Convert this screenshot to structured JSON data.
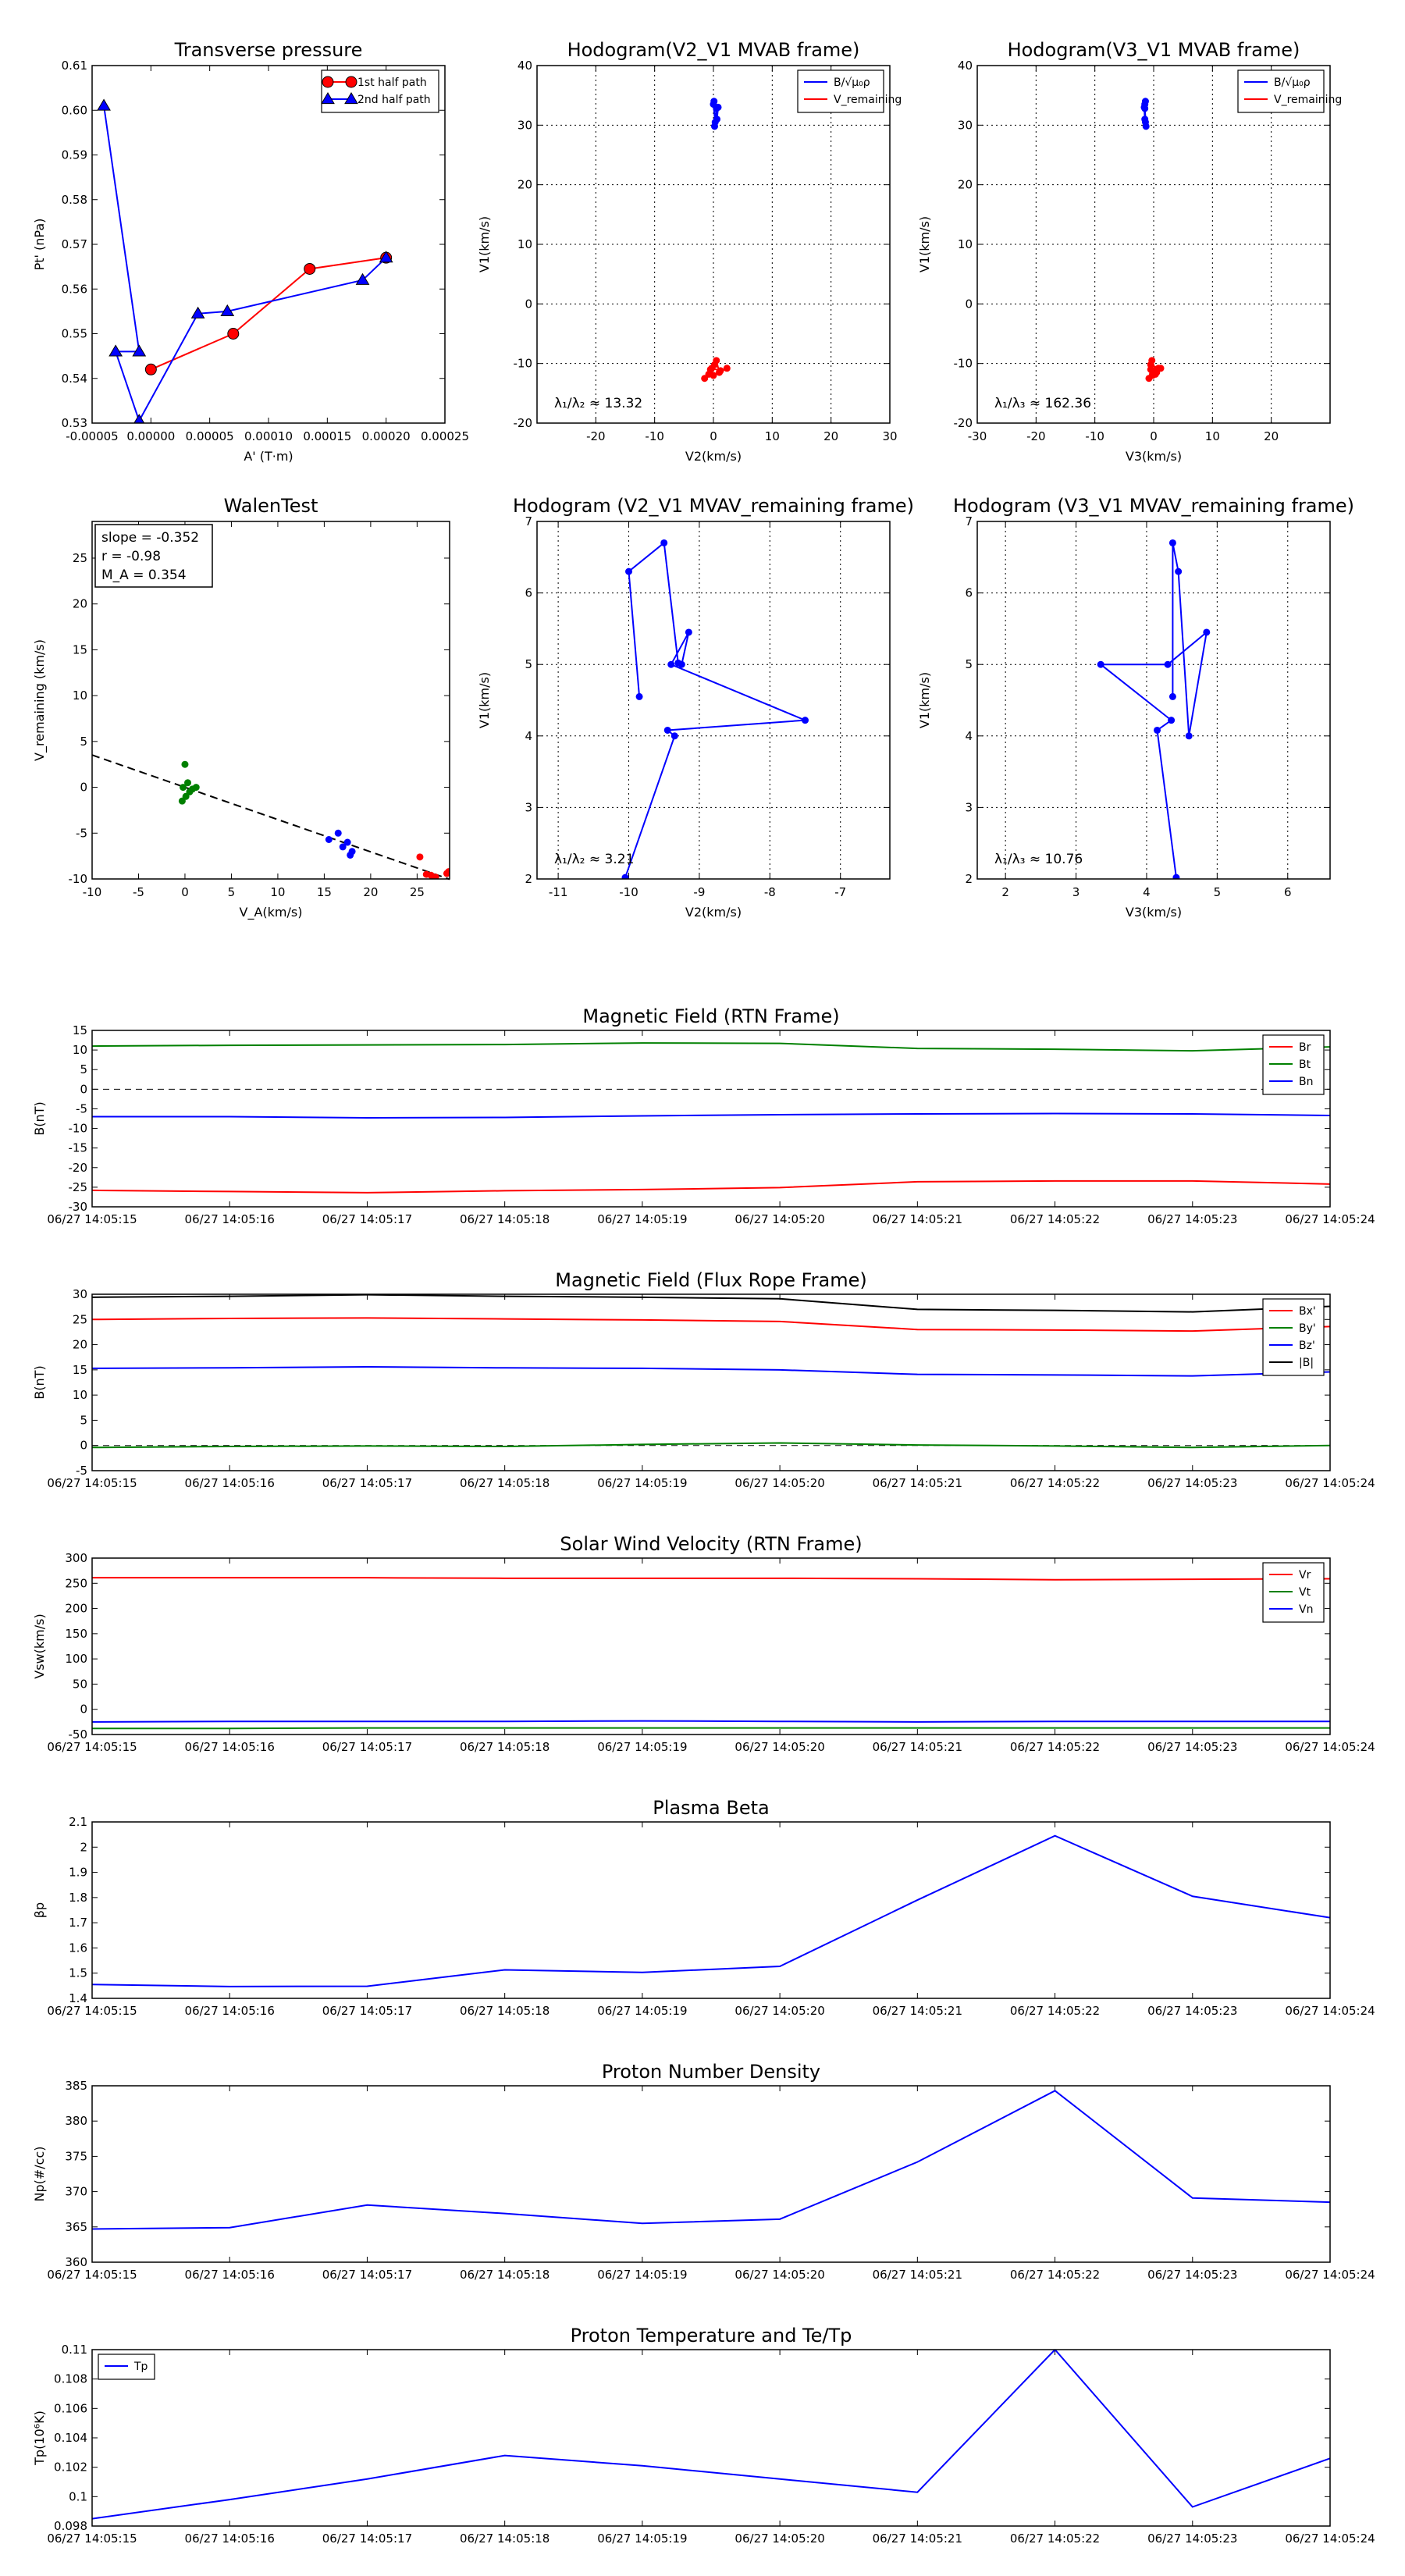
{
  "times": [
    "06/27 14:05:15",
    "06/27 14:05:16",
    "06/27 14:05:17",
    "06/27 14:05:18",
    "06/27 14:05:19",
    "06/27 14:05:20",
    "06/27 14:05:21",
    "06/27 14:05:22",
    "06/27 14:05:23",
    "06/27 14:05:24"
  ],
  "chart_data": [
    {
      "id": "transverse-pressure",
      "type": "line",
      "title": "Transverse pressure",
      "xlabel": "A' (T·m)",
      "ylabel": "Pt' (nPa)",
      "xlim": [
        -5e-05,
        0.00025
      ],
      "ylim": [
        0.53,
        0.61
      ],
      "xticks": [
        -5e-05,
        0,
        5e-05,
        0.0001,
        0.00015,
        0.0002,
        0.00025
      ],
      "xtick_labels": [
        "-0.00005",
        "0.00000",
        "0.00005",
        "0.00010",
        "0.00015",
        "0.00020",
        "0.00025"
      ],
      "yticks": [
        0.53,
        0.54,
        0.55,
        0.56,
        0.57,
        0.58,
        0.59,
        0.6,
        0.61
      ],
      "ytick_labels": [
        "0.53",
        "0.54",
        "0.55",
        "0.56",
        "0.57",
        "0.58",
        "0.59",
        "0.60",
        "0.61"
      ],
      "legend_position": "top-right",
      "series": [
        {
          "name": "1st half path",
          "color": "#ff0000",
          "marker": "circle",
          "x": [
            0.0,
            7e-05,
            0.000135,
            0.0002
          ],
          "y": [
            0.542,
            0.55,
            0.5645,
            0.567
          ]
        },
        {
          "name": "2nd half path",
          "color": "#0000ff",
          "marker": "triangle",
          "x": [
            0.0002,
            0.00018,
            6.5e-05,
            4e-05,
            -1e-05,
            -3e-05,
            -1e-05,
            -4e-05
          ],
          "y": [
            0.567,
            0.562,
            0.555,
            0.5545,
            0.5305,
            0.546,
            0.546,
            0.601
          ]
        }
      ]
    },
    {
      "id": "hodogram-v2v1-mvab",
      "type": "scatter",
      "title": "Hodogram(V2_V1 MVAB frame)",
      "xlabel": "V2(km/s)",
      "ylabel": "V1(km/s)",
      "xlim": [
        -30,
        30
      ],
      "ylim": [
        -20,
        40
      ],
      "xticks": [
        -20,
        -10,
        0,
        10,
        20,
        30
      ],
      "yticks": [
        -20,
        -10,
        0,
        10,
        20,
        30,
        40
      ],
      "annotation": "λ₁/λ₂ ≈ 13.32",
      "legend_position": "top-right",
      "series": [
        {
          "name": "B/√μ₀ρ",
          "color": "#0000ff",
          "x": [
            0.0,
            0.3,
            0.8,
            0.6,
            0.2,
            0.5,
            0.1
          ],
          "y": [
            33.5,
            30.5,
            33.0,
            31.0,
            29.8,
            32.8,
            34.0
          ]
        },
        {
          "name": "V_remaining",
          "color": "#ff0000",
          "x": [
            -1.5,
            -0.5,
            0.5,
            1.0,
            2.3,
            0.0,
            -0.8,
            0.2,
            -0.3,
            1.2
          ],
          "y": [
            -12.5,
            -11.0,
            -9.5,
            -11.5,
            -10.8,
            -12.0,
            -11.8,
            -10.2,
            -10.8,
            -11.2
          ]
        }
      ]
    },
    {
      "id": "hodogram-v3v1-mvab",
      "type": "scatter",
      "title": "Hodogram(V3_V1 MVAB frame)",
      "xlabel": "V3(km/s)",
      "ylabel": "V1(km/s)",
      "xlim": [
        -30,
        30
      ],
      "ylim": [
        -20,
        40
      ],
      "xticks": [
        -30,
        -20,
        -10,
        0,
        10,
        20
      ],
      "yticks": [
        -20,
        -10,
        0,
        10,
        20,
        30,
        40
      ],
      "annotation": "λ₁/λ₃ ≈ 162.36",
      "legend_position": "top-right",
      "series": [
        {
          "name": "B/√μ₀ρ",
          "color": "#0000ff",
          "x": [
            -1.5,
            -1.4,
            -1.6,
            -1.5,
            -1.3,
            -1.5,
            -1.4
          ],
          "y": [
            33.5,
            30.5,
            33.0,
            31.0,
            29.8,
            32.8,
            34.0
          ]
        },
        {
          "name": "V_remaining",
          "color": "#ff0000",
          "x": [
            -0.8,
            -0.5,
            -0.3,
            0.5,
            1.2,
            -0.2,
            0.3,
            -0.5,
            0.8,
            0.0
          ],
          "y": [
            -12.5,
            -11.0,
            -9.5,
            -11.5,
            -10.8,
            -12.0,
            -11.8,
            -10.2,
            -10.8,
            -11.2
          ]
        }
      ]
    },
    {
      "id": "walen-test",
      "type": "scatter",
      "title": "WalenTest",
      "xlabel": "V_A(km/s)",
      "ylabel": "V_remaining (km/s)",
      "xlim": [
        -10,
        28.5
      ],
      "ylim": [
        -10,
        29
      ],
      "xticks": [
        -10,
        -5,
        0,
        5,
        10,
        15,
        20,
        25
      ],
      "yticks": [
        -10,
        -5,
        0,
        5,
        10,
        15,
        20,
        25
      ],
      "info_lines": [
        "slope = -0.352",
        "r = -0.98",
        "M_A = 0.354"
      ],
      "fit_line": {
        "slope": -0.352,
        "intercept": 0.0
      },
      "series": [
        {
          "name": "green",
          "color": "#008000",
          "x": [
            0.0,
            0.3,
            -0.2,
            0.5,
            0.8,
            1.2,
            0.1,
            -0.3
          ],
          "y": [
            2.5,
            0.5,
            0.0,
            -0.5,
            -0.2,
            0.0,
            -1.0,
            -1.5
          ]
        },
        {
          "name": "blue",
          "color": "#0000ff",
          "x": [
            15.5,
            16.5,
            17.0,
            17.5,
            18.0,
            17.8
          ],
          "y": [
            -5.7,
            -5.0,
            -6.5,
            -6.0,
            -7.0,
            -7.4
          ]
        },
        {
          "name": "red",
          "color": "#ff0000",
          "x": [
            25.3,
            26.0,
            26.5,
            27.0,
            28.2,
            28.4
          ],
          "y": [
            -7.6,
            -9.5,
            -9.6,
            -9.8,
            -9.4,
            -9.2
          ]
        }
      ]
    },
    {
      "id": "hodogram-v2v1-mvav",
      "type": "line",
      "title": "Hodogram (V2_V1 MVAV_remaining frame)",
      "xlabel": "V2(km/s)",
      "ylabel": "V1(km/s)",
      "xlim": [
        -11.3,
        -6.3
      ],
      "ylim": [
        2,
        7
      ],
      "xticks": [
        -11,
        -10,
        -9,
        -8,
        -7
      ],
      "yticks": [
        2,
        3,
        4,
        5,
        6,
        7
      ],
      "annotation": "λ₁/λ₂ ≈ 3.21",
      "series": [
        {
          "name": "path",
          "color": "#0000ff",
          "x": [
            -9.85,
            -10.0,
            -9.5,
            -9.3,
            -9.25,
            -9.15,
            -9.4,
            -7.5,
            -9.45,
            -9.35,
            -10.05
          ],
          "y": [
            4.55,
            6.3,
            6.7,
            5.02,
            5.0,
            5.45,
            5.0,
            4.22,
            4.08,
            4.0,
            2.02
          ]
        }
      ]
    },
    {
      "id": "hodogram-v3v1-mvav",
      "type": "line",
      "title": "Hodogram (V3_V1 MVAV_remaining frame)",
      "xlabel": "V3(km/s)",
      "ylabel": "V1(km/s)",
      "xlim": [
        1.6,
        6.6
      ],
      "ylim": [
        2,
        7
      ],
      "xticks": [
        2,
        3,
        4,
        5,
        6
      ],
      "yticks": [
        2,
        3,
        4,
        5,
        6,
        7
      ],
      "annotation": "λ₁/λ₃ ≈ 10.76",
      "series": [
        {
          "name": "path",
          "color": "#0000ff",
          "x": [
            4.37,
            4.37,
            4.45,
            4.6,
            4.85,
            4.3,
            3.35,
            4.35,
            4.15,
            4.42
          ],
          "y": [
            4.55,
            6.7,
            6.3,
            4.0,
            5.45,
            5.0,
            5.0,
            4.22,
            4.08,
            2.02
          ]
        }
      ]
    },
    {
      "id": "magnetic-field-rtn",
      "type": "line",
      "title": "Magnetic Field (RTN Frame)",
      "ylabel": "B(nT)",
      "ylim": [
        -30,
        15
      ],
      "yticks": [
        -30,
        -25,
        -20,
        -15,
        -10,
        -5,
        0,
        5,
        10,
        15
      ],
      "zero_line": true,
      "legend_position": "top-right",
      "series": [
        {
          "name": "Br",
          "color": "#ff0000",
          "values": [
            -25.8,
            -26.1,
            -26.4,
            -25.9,
            -25.6,
            -25.1,
            -23.6,
            -23.4,
            -23.4,
            -24.2
          ]
        },
        {
          "name": "Bt",
          "color": "#008000",
          "values": [
            11.0,
            11.2,
            11.3,
            11.4,
            11.8,
            11.7,
            10.4,
            10.2,
            9.8,
            10.8
          ]
        },
        {
          "name": "Bn",
          "color": "#0000ff",
          "values": [
            -7.0,
            -7.0,
            -7.3,
            -7.2,
            -6.8,
            -6.5,
            -6.3,
            -6.2,
            -6.3,
            -6.7
          ]
        }
      ]
    },
    {
      "id": "magnetic-field-flux-rope",
      "type": "line",
      "title": "Magnetic Field (Flux Rope Frame)",
      "ylabel": "B(nT)",
      "ylim": [
        -5,
        30
      ],
      "yticks": [
        -5,
        0,
        5,
        10,
        15,
        20,
        25,
        30
      ],
      "zero_line": true,
      "legend_position": "top-right",
      "series": [
        {
          "name": "Bx'",
          "color": "#ff0000",
          "values": [
            25.0,
            25.2,
            25.3,
            25.1,
            24.9,
            24.6,
            23.0,
            22.9,
            22.7,
            23.6
          ]
        },
        {
          "name": "By'",
          "color": "#008000",
          "values": [
            -0.4,
            -0.2,
            -0.1,
            -0.2,
            0.2,
            0.5,
            0.1,
            -0.1,
            -0.4,
            0.0
          ]
        },
        {
          "name": "Bz'",
          "color": "#0000ff",
          "values": [
            15.3,
            15.4,
            15.6,
            15.4,
            15.3,
            15.0,
            14.1,
            14.0,
            13.8,
            14.6
          ]
        },
        {
          "name": "|B|",
          "color": "#000000",
          "values": [
            29.4,
            29.6,
            29.9,
            29.6,
            29.4,
            29.1,
            27.0,
            26.8,
            26.5,
            27.6
          ]
        }
      ]
    },
    {
      "id": "solar-wind-velocity",
      "type": "line",
      "title": "Solar Wind Velocity (RTN Frame)",
      "ylabel": "Vsw(km/s)",
      "ylim": [
        -50,
        300
      ],
      "yticks": [
        -50,
        0,
        50,
        100,
        150,
        200,
        250,
        300
      ],
      "legend_position": "top-right",
      "series": [
        {
          "name": "Vr",
          "color": "#ff0000",
          "values": [
            261,
            261,
            261,
            260,
            260,
            260,
            259,
            257,
            258,
            259
          ]
        },
        {
          "name": "Vt",
          "color": "#008000",
          "values": [
            -38,
            -38,
            -37,
            -37,
            -37,
            -37,
            -37,
            -37,
            -37,
            -37
          ]
        },
        {
          "name": "Vn",
          "color": "#0000ff",
          "values": [
            -25,
            -24,
            -24,
            -24,
            -23,
            -24,
            -25,
            -24,
            -24,
            -24
          ]
        }
      ]
    },
    {
      "id": "plasma-beta",
      "type": "line",
      "title": "Plasma Beta",
      "ylabel": "βp",
      "ylim": [
        1.4,
        2.1
      ],
      "yticks": [
        1.4,
        1.5,
        1.6,
        1.7,
        1.8,
        1.9,
        2.0,
        2.1
      ],
      "series": [
        {
          "name": "beta",
          "color": "#0000ff",
          "values": [
            1.455,
            1.447,
            1.448,
            1.513,
            1.503,
            1.527,
            1.79,
            2.045,
            1.805,
            1.72
          ]
        }
      ]
    },
    {
      "id": "proton-density",
      "type": "line",
      "title": "Proton Number Density",
      "ylabel": "Np(#/cc)",
      "ylim": [
        360,
        385
      ],
      "yticks": [
        360,
        365,
        370,
        375,
        380,
        385
      ],
      "series": [
        {
          "name": "Np",
          "color": "#0000ff",
          "values": [
            364.7,
            364.9,
            368.1,
            366.9,
            365.5,
            366.1,
            374.2,
            384.3,
            369.1,
            368.5
          ]
        }
      ]
    },
    {
      "id": "proton-temperature",
      "type": "line",
      "title": "Proton Temperature and Te/Tp",
      "ylabel": "Tp(10⁶K)",
      "ylim": [
        0.098,
        0.11
      ],
      "yticks": [
        0.098,
        0.1,
        0.102,
        0.104,
        0.106,
        0.108,
        0.11
      ],
      "legend_position": "top-left",
      "series": [
        {
          "name": "Tp",
          "color": "#0000ff",
          "values": [
            0.0985,
            0.0998,
            0.1012,
            0.1028,
            0.1021,
            0.1012,
            0.1003,
            0.11,
            0.0993,
            0.1026
          ]
        }
      ]
    }
  ]
}
